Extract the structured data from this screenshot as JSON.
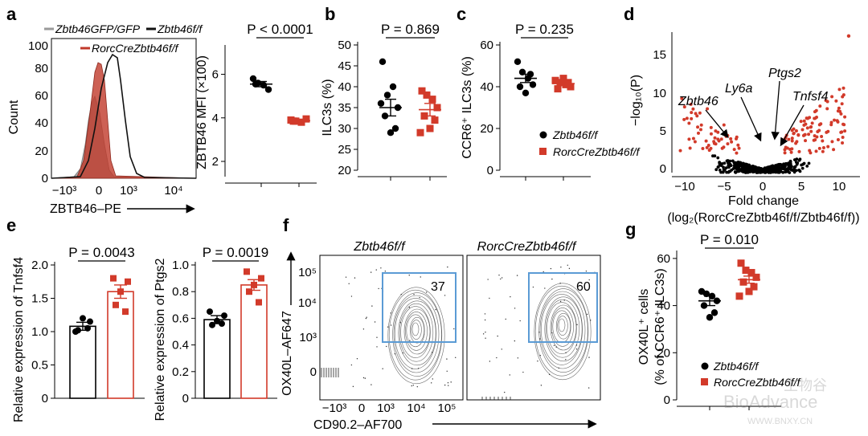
{
  "panel_labels": [
    "a",
    "b",
    "c",
    "d",
    "e",
    "f",
    "g"
  ],
  "chart_data": [
    {
      "panel": "a-histogram",
      "type": "area",
      "legend": [
        "Zbtb46GFP/GFP",
        "Zbtb46f/f",
        "RorcCreZbtb46f/f"
      ],
      "legend_colors": [
        "#9a9a9a",
        "#111111",
        "#c0392b"
      ],
      "xlabel": "ZBTB46–PE",
      "ylabel": "Count",
      "yticks": [
        "0",
        "20",
        "40",
        "60",
        "80",
        "100"
      ],
      "xticks": [
        "−10³",
        "0",
        "10³",
        "10⁴"
      ],
      "ylim": [
        0,
        100
      ],
      "series": [
        {
          "name": "Zbtb46GFP/GFP",
          "peak_x": 0.15,
          "peak_y": 66
        },
        {
          "name": "Zbtb46f/f",
          "peak_x": 0.55,
          "peak_y": 91
        },
        {
          "name": "RorcCreZbtb46f/f",
          "peak_x": 0.22,
          "peak_y": 88
        }
      ]
    },
    {
      "panel": "a-dot",
      "type": "scatter",
      "ylabel": "ZBTB46 MFI (×100)",
      "yticks": [
        "2",
        "4",
        "6"
      ],
      "ylim": [
        1.3,
        7.2
      ],
      "pvalue": "P < 0.0001",
      "groups": [
        {
          "name": "Zbtb46f/f",
          "color": "#000000",
          "marker": "circle",
          "values": [
            5.8,
            5.6,
            5.5,
            5.3,
            5.55
          ],
          "mean": 5.55,
          "sem": 0.12
        },
        {
          "name": "RorcCreZbtb46f/f",
          "color": "#d23a2a",
          "marker": "square",
          "values": [
            3.9,
            3.85,
            3.8,
            3.95,
            3.85
          ],
          "mean": 3.87,
          "sem": 0.05
        }
      ]
    },
    {
      "panel": "b",
      "type": "scatter",
      "ylabel": "ILC3s (%)",
      "yticks": [
        "20",
        "25",
        "30",
        "35",
        "40",
        "45",
        "50"
      ],
      "ylim": [
        20,
        50
      ],
      "pvalue": "P = 0.869",
      "groups": [
        {
          "name": "Zbtb46f/f",
          "color": "#000000",
          "marker": "circle",
          "values": [
            46,
            38,
            40,
            35,
            33,
            30,
            29,
            36
          ],
          "mean": 35,
          "sem": 2
        },
        {
          "name": "RorcCreZbtb46f/f",
          "color": "#d23a2a",
          "marker": "square",
          "values": [
            39,
            38,
            37,
            35,
            33,
            32,
            30,
            29
          ],
          "mean": 34.5,
          "sem": 1.5
        }
      ]
    },
    {
      "panel": "c",
      "type": "scatter",
      "ylabel": "CCR6⁺ ILC3s (%)",
      "yticks": [
        "0",
        "20",
        "40",
        "60"
      ],
      "ylim": [
        0,
        60
      ],
      "pvalue": "P = 0.235",
      "legend": [
        "Zbtb46f/f",
        "RorcCreZbtb46f/f"
      ],
      "groups": [
        {
          "name": "Zbtb46f/f",
          "color": "#000000",
          "marker": "circle",
          "values": [
            52,
            47,
            44,
            41,
            40,
            46,
            37
          ],
          "mean": 44,
          "sem": 2
        },
        {
          "name": "RorcCreZbtb46f/f",
          "color": "#d23a2a",
          "marker": "square",
          "values": [
            43,
            42,
            41,
            40,
            39,
            42,
            44
          ],
          "mean": 41.5,
          "sem": 1
        }
      ]
    },
    {
      "panel": "d",
      "type": "scatter",
      "xlabel": "Fold change",
      "xlabel2": "(log₂(RorcCreZbtb46f/f/Zbtb46f/f))",
      "ylabel": "−log₁₀(P)",
      "xticks": [
        "−10",
        "−5",
        "0",
        "5",
        "10"
      ],
      "yticks": [
        "0",
        "5",
        "10",
        "15"
      ],
      "xlim": [
        -12,
        13
      ],
      "ylim": [
        0,
        18
      ],
      "annotations": [
        {
          "text": "Zbtb46",
          "x": -4.5,
          "y": 3.5
        },
        {
          "text": "Ly6a",
          "x": 0.5,
          "y": 3.2
        },
        {
          "text": "Ptgs2",
          "x": 2.2,
          "y": 4.0
        },
        {
          "text": "Tnfsf4",
          "x": 2.0,
          "y": 1.5
        }
      ]
    },
    {
      "panel": "e-left",
      "type": "bar",
      "ylabel": "Relative expression of Tnfsf4",
      "yticks": [
        "0",
        "0.5",
        "1.0",
        "1.5",
        "2.0"
      ],
      "ylim": [
        0,
        2.0
      ],
      "pvalue": "P = 0.0043",
      "categories": [
        "Zbtb46f/f",
        "RorcCreZbtb46f/f"
      ],
      "values": [
        1.08,
        1.6
      ],
      "errors": [
        0.06,
        0.1
      ],
      "points": [
        [
          1.0,
          1.15,
          1.2,
          1.02,
          1.05
        ],
        [
          1.8,
          1.75,
          1.6,
          1.4,
          1.3
        ]
      ]
    },
    {
      "panel": "e-right",
      "type": "bar",
      "ylabel": "Relative expression of Ptgs2",
      "yticks": [
        "0",
        "0.2",
        "0.4",
        "0.6",
        "0.8",
        "1.0"
      ],
      "ylim": [
        0,
        1.0
      ],
      "pvalue": "P = 0.0019",
      "categories": [
        "Zbtb46f/f",
        "RorcCreZbtb46f/f"
      ],
      "values": [
        0.59,
        0.85
      ],
      "errors": [
        0.03,
        0.04
      ],
      "points": [
        [
          0.65,
          0.62,
          0.58,
          0.55,
          0.56
        ],
        [
          0.95,
          0.9,
          0.85,
          0.8,
          0.72
        ]
      ]
    },
    {
      "panel": "f",
      "type": "heatmap",
      "titles": [
        "Zbtb46f/f",
        "RorcCreZbtb46f/f"
      ],
      "gate_values": [
        "37",
        "60"
      ],
      "ylabel": "OX40L–AF647",
      "xlabel": "CD90.2–AF700",
      "yticks": [
        "0",
        "10³",
        "10⁴",
        "10⁵"
      ],
      "xticks": [
        "−10³",
        "0",
        "10³",
        "10⁴",
        "10⁵"
      ]
    },
    {
      "panel": "g",
      "type": "scatter",
      "ylabel": "OX40L⁺ cells",
      "ylabel2": "(% of CCR6⁺ ILC3s)",
      "yticks": [
        "0",
        "20",
        "40",
        "60"
      ],
      "ylim": [
        0,
        62
      ],
      "pvalue": "P = 0.010",
      "legend": [
        "Zbtb46f/f",
        "RorcCreZbtb46f/f"
      ],
      "groups": [
        {
          "name": "Zbtb46f/f",
          "color": "#000000",
          "marker": "circle",
          "values": [
            46,
            45,
            44,
            42,
            40,
            37,
            35
          ],
          "mean": 42,
          "sem": 2
        },
        {
          "name": "RorcCreZbtb46f/f",
          "color": "#d23a2a",
          "marker": "square",
          "values": [
            58,
            55,
            54,
            52,
            50,
            48,
            46,
            44
          ],
          "mean": 51,
          "sem": 1.5
        }
      ]
    }
  ],
  "watermark": {
    "brand": "BioAdvance",
    "url": "WWW.BNXY.CN",
    "cn": "生物谷"
  }
}
